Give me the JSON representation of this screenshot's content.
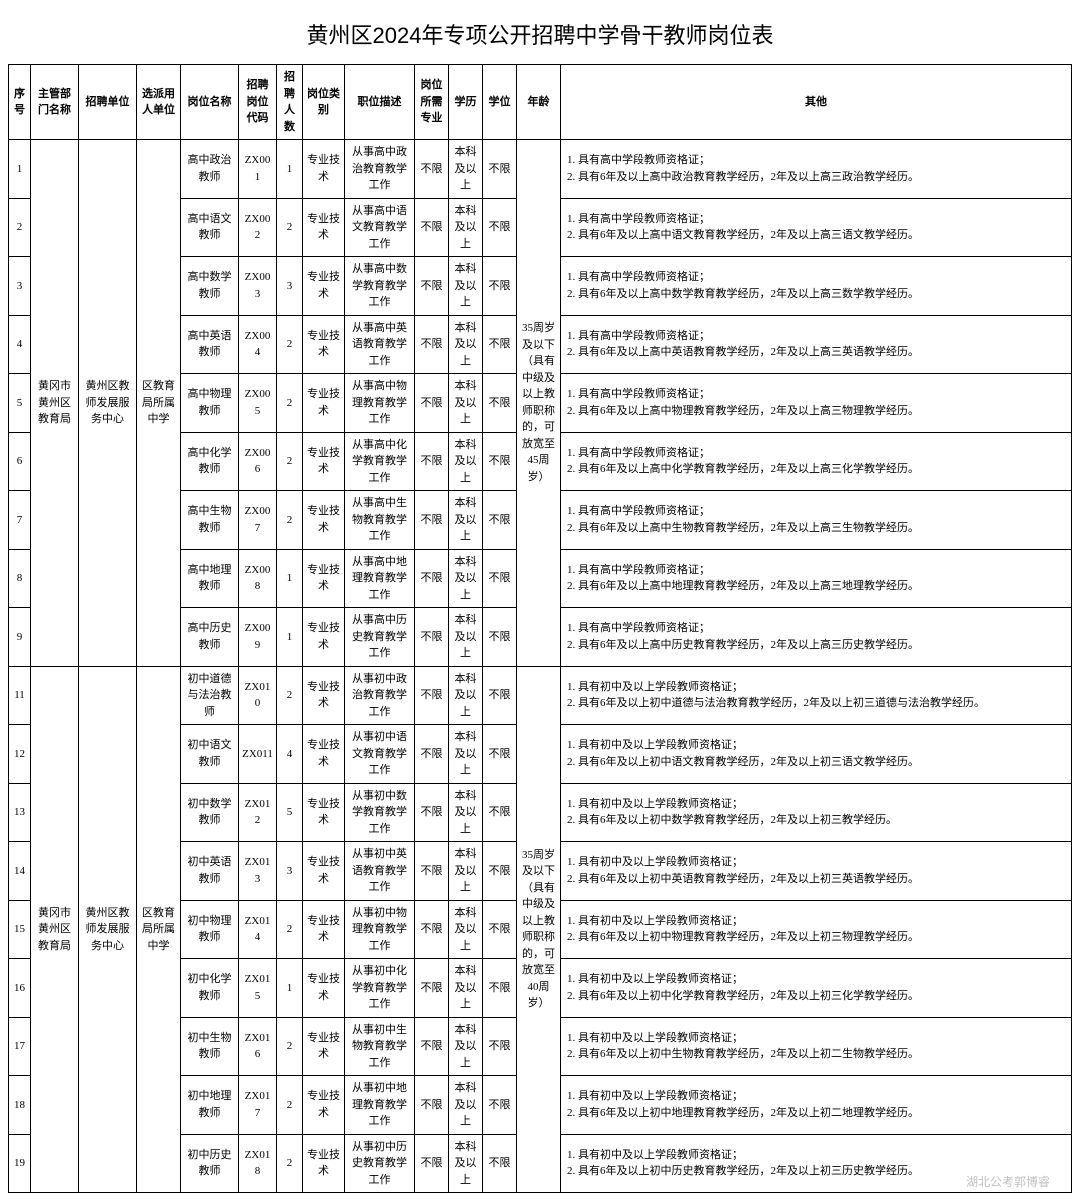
{
  "title": "黄州区2024年专项公开招聘中学骨干教师岗位表",
  "columns": {
    "seq": "序号",
    "dept": "主管部门名称",
    "unit": "招聘单位",
    "assign": "选派用人单位",
    "position": "岗位名称",
    "code": "招聘岗位代码",
    "num": "招聘人数",
    "type": "岗位类别",
    "desc": "职位描述",
    "major": "岗位所需专业",
    "edu": "学历",
    "degree": "学位",
    "age": "年龄",
    "other": "其他"
  },
  "groups": [
    {
      "dept": "黄冈市黄州区教育局",
      "unit": "黄州区教师发展服务中心",
      "assign": "区教育局所属中学",
      "age": "35周岁及以下（具有中级及以上教师职称的，可放宽至45周岁）",
      "rows": [
        {
          "seq": "1",
          "position": "高中政治教师",
          "code": "ZX001",
          "num": "1",
          "type": "专业技术",
          "desc": "从事高中政治教育教学工作",
          "major": "不限",
          "edu": "本科及以上",
          "degree": "不限",
          "other": "1. 具有高中学段教师资格证；\n2. 具有6年及以上高中政治教育教学经历，2年及以上高三政治教学经历。"
        },
        {
          "seq": "2",
          "position": "高中语文教师",
          "code": "ZX002",
          "num": "2",
          "type": "专业技术",
          "desc": "从事高中语文教育教学工作",
          "major": "不限",
          "edu": "本科及以上",
          "degree": "不限",
          "other": "1. 具有高中学段教师资格证；\n2. 具有6年及以上高中语文教育教学经历，2年及以上高三语文教学经历。"
        },
        {
          "seq": "3",
          "position": "高中数学教师",
          "code": "ZX003",
          "num": "3",
          "type": "专业技术",
          "desc": "从事高中数学教育教学工作",
          "major": "不限",
          "edu": "本科及以上",
          "degree": "不限",
          "other": "1. 具有高中学段教师资格证；\n2. 具有6年及以上高中数学教育教学经历，2年及以上高三数学教学经历。"
        },
        {
          "seq": "4",
          "position": "高中英语教师",
          "code": "ZX004",
          "num": "2",
          "type": "专业技术",
          "desc": "从事高中英语教育教学工作",
          "major": "不限",
          "edu": "本科及以上",
          "degree": "不限",
          "other": "1. 具有高中学段教师资格证；\n2. 具有6年及以上高中英语教育教学经历，2年及以上高三英语教学经历。"
        },
        {
          "seq": "5",
          "position": "高中物理教师",
          "code": "ZX005",
          "num": "2",
          "type": "专业技术",
          "desc": "从事高中物理教育教学工作",
          "major": "不限",
          "edu": "本科及以上",
          "degree": "不限",
          "other": "1. 具有高中学段教师资格证；\n2. 具有6年及以上高中物理教育教学经历，2年及以上高三物理教学经历。"
        },
        {
          "seq": "6",
          "position": "高中化学教师",
          "code": "ZX006",
          "num": "2",
          "type": "专业技术",
          "desc": "从事高中化学教育教学工作",
          "major": "不限",
          "edu": "本科及以上",
          "degree": "不限",
          "other": "1. 具有高中学段教师资格证；\n2. 具有6年及以上高中化学教育教学经历，2年及以上高三化学教学经历。"
        },
        {
          "seq": "7",
          "position": "高中生物教师",
          "code": "ZX007",
          "num": "2",
          "type": "专业技术",
          "desc": "从事高中生物教育教学工作",
          "major": "不限",
          "edu": "本科及以上",
          "degree": "不限",
          "other": "1. 具有高中学段教师资格证；\n2. 具有6年及以上高中生物教育教学经历，2年及以上高三生物教学经历。"
        },
        {
          "seq": "8",
          "position": "高中地理教师",
          "code": "ZX008",
          "num": "1",
          "type": "专业技术",
          "desc": "从事高中地理教育教学工作",
          "major": "不限",
          "edu": "本科及以上",
          "degree": "不限",
          "other": "1. 具有高中学段教师资格证；\n2. 具有6年及以上高中地理教育教学经历，2年及以上高三地理教学经历。"
        },
        {
          "seq": "9",
          "position": "高中历史教师",
          "code": "ZX009",
          "num": "1",
          "type": "专业技术",
          "desc": "从事高中历史教育教学工作",
          "major": "不限",
          "edu": "本科及以上",
          "degree": "不限",
          "other": "1. 具有高中学段教师资格证；\n2. 具有6年及以上高中历史教育教学经历，2年及以上高三历史教学经历。"
        }
      ]
    },
    {
      "dept": "黄冈市黄州区教育局",
      "unit": "黄州区教师发展服务中心",
      "assign": "区教育局所属中学",
      "age": "35周岁及以下（具有中级及以上教师职称的，可放宽至40周岁）",
      "rows": [
        {
          "seq": "11",
          "position": "初中道德与法治教师",
          "code": "ZX010",
          "num": "2",
          "type": "专业技术",
          "desc": "从事初中政治教育教学工作",
          "major": "不限",
          "edu": "本科及以上",
          "degree": "不限",
          "other": "1. 具有初中及以上学段教师资格证；\n2. 具有6年及以上初中道德与法治教育教学经历，2年及以上初三道德与法治教学经历。"
        },
        {
          "seq": "12",
          "position": "初中语文教师",
          "code": "ZX011",
          "num": "4",
          "type": "专业技术",
          "desc": "从事初中语文教育教学工作",
          "major": "不限",
          "edu": "本科及以上",
          "degree": "不限",
          "other": "1. 具有初中及以上学段教师资格证；\n2. 具有6年及以上初中语文教育教学经历，2年及以上初三语文教学经历。"
        },
        {
          "seq": "13",
          "position": "初中数学教师",
          "code": "ZX012",
          "num": "5",
          "type": "专业技术",
          "desc": "从事初中数学教育教学工作",
          "major": "不限",
          "edu": "本科及以上",
          "degree": "不限",
          "other": "1. 具有初中及以上学段教师资格证；\n2. 具有6年及以上初中数学教育教学经历，2年及以上初三教学经历。"
        },
        {
          "seq": "14",
          "position": "初中英语教师",
          "code": "ZX013",
          "num": "3",
          "type": "专业技术",
          "desc": "从事初中英语教育教学工作",
          "major": "不限",
          "edu": "本科及以上",
          "degree": "不限",
          "other": "1. 具有初中及以上学段教师资格证；\n2. 具有6年及以上初中英语教育教学经历，2年及以上初三英语教学经历。"
        },
        {
          "seq": "15",
          "position": "初中物理教师",
          "code": "ZX014",
          "num": "2",
          "type": "专业技术",
          "desc": "从事初中物理教育教学工作",
          "major": "不限",
          "edu": "本科及以上",
          "degree": "不限",
          "other": "1. 具有初中及以上学段教师资格证；\n2. 具有6年及以上初中物理教育教学经历，2年及以上初三物理教学经历。"
        },
        {
          "seq": "16",
          "position": "初中化学教师",
          "code": "ZX015",
          "num": "1",
          "type": "专业技术",
          "desc": "从事初中化学教育教学工作",
          "major": "不限",
          "edu": "本科及以上",
          "degree": "不限",
          "other": "1. 具有初中及以上学段教师资格证；\n2. 具有6年及以上初中化学教育教学经历，2年及以上初三化学教学经历。"
        },
        {
          "seq": "17",
          "position": "初中生物教师",
          "code": "ZX016",
          "num": "2",
          "type": "专业技术",
          "desc": "从事初中生物教育教学工作",
          "major": "不限",
          "edu": "本科及以上",
          "degree": "不限",
          "other": "1. 具有初中及以上学段教师资格证；\n2. 具有6年及以上初中生物教育教学经历，2年及以上初二生物教学经历。"
        },
        {
          "seq": "18",
          "position": "初中地理教师",
          "code": "ZX017",
          "num": "2",
          "type": "专业技术",
          "desc": "从事初中地理教育教学工作",
          "major": "不限",
          "edu": "本科及以上",
          "degree": "不限",
          "other": "1. 具有初中及以上学段教师资格证；\n2. 具有6年及以上初中地理教育教学经历，2年及以上初二地理教学经历。"
        },
        {
          "seq": "19",
          "position": "初中历史教师",
          "code": "ZX018",
          "num": "2",
          "type": "专业技术",
          "desc": "从事初中历史教育教学工作",
          "major": "不限",
          "edu": "本科及以上",
          "degree": "不限",
          "other": "1. 具有初中及以上学段教师资格证；\n2. 具有6年及以上初中历史教育教学经历，2年及以上初三历史教学经历。"
        }
      ]
    }
  ],
  "watermark": "湖北公考郭博睿"
}
